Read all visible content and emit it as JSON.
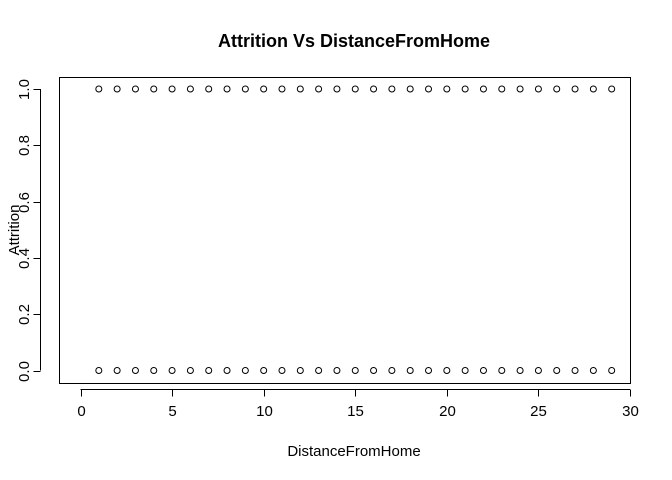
{
  "chart_data": {
    "type": "scatter",
    "title": "Attrition Vs DistanceFromHome",
    "xlabel": "DistanceFromHome",
    "ylabel": "Attrition",
    "xlim": [
      0,
      30
    ],
    "ylim": [
      0,
      1
    ],
    "x_ticks": [
      0,
      5,
      10,
      15,
      20,
      25,
      30
    ],
    "y_ticks": [
      0.0,
      0.2,
      0.4,
      0.6,
      0.8,
      1.0
    ],
    "x_tick_labels": [
      "0",
      "5",
      "10",
      "15",
      "20",
      "25",
      "30"
    ],
    "y_tick_labels": [
      "0.0",
      "0.2",
      "0.4",
      "0.6",
      "0.8",
      "1.0"
    ],
    "grid": false,
    "legend": "none",
    "marker": "open-circle",
    "point_color": "#000000",
    "series": [
      {
        "x": [
          1,
          2,
          3,
          4,
          5,
          6,
          7,
          8,
          9,
          10,
          11,
          12,
          13,
          14,
          15,
          16,
          17,
          18,
          19,
          20,
          21,
          22,
          23,
          24,
          25,
          26,
          27,
          28,
          29,
          1,
          2,
          3,
          4,
          5,
          6,
          7,
          8,
          9,
          10,
          11,
          12,
          13,
          14,
          15,
          16,
          17,
          18,
          19,
          20,
          21,
          22,
          23,
          24,
          25,
          26,
          27,
          28,
          29
        ],
        "y": [
          1,
          1,
          1,
          1,
          1,
          1,
          1,
          1,
          1,
          1,
          1,
          1,
          1,
          1,
          1,
          1,
          1,
          1,
          1,
          1,
          1,
          1,
          1,
          1,
          1,
          1,
          1,
          1,
          1,
          0,
          0,
          0,
          0,
          0,
          0,
          0,
          0,
          0,
          0,
          0,
          0,
          0,
          0,
          0,
          0,
          0,
          0,
          0,
          0,
          0,
          0,
          0,
          0,
          0,
          0,
          0,
          0,
          0
        ]
      }
    ]
  }
}
